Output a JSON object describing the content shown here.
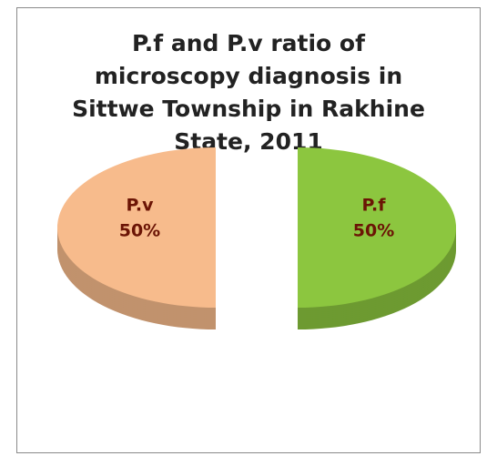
{
  "chart_data": {
    "type": "pie",
    "title": "P.f and P.v ratio of microscopy diagnosis in Sittwe Township in Rakhine State, 2011",
    "categories": [
      "P.f",
      "P.v"
    ],
    "values": [
      50,
      50
    ],
    "value_labels": [
      "50%",
      "50%"
    ],
    "colors": [
      "#8cc63f",
      "#f7bb8c"
    ],
    "legend": false
  }
}
